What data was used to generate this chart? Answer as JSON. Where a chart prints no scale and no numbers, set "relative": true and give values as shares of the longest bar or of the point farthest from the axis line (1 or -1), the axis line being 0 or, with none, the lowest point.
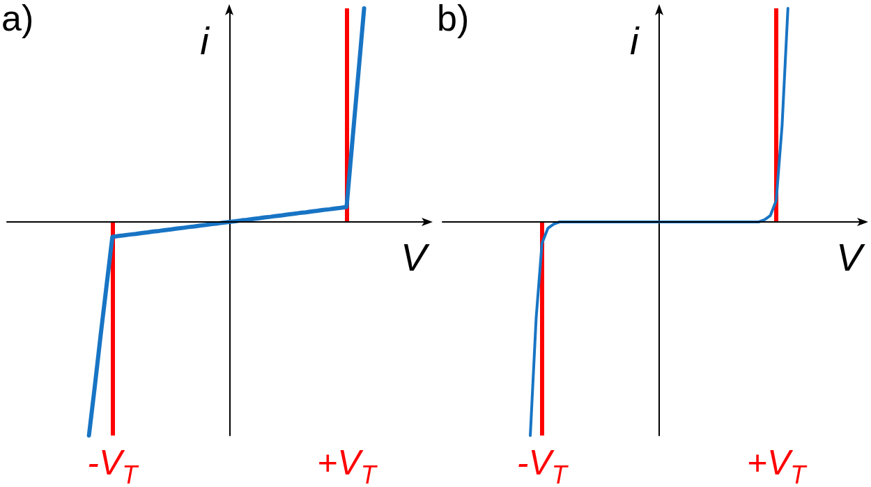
{
  "chart_data": [
    {
      "type": "line",
      "title": "a)",
      "xlabel": "V",
      "ylabel": "i",
      "relative": true,
      "tick_labels": "x",
      "categories": [
        null,
        null,
        null,
        null,
        null,
        null,
        null,
        null,
        null,
        null,
        null,
        null,
        null,
        null,
        null,
        null,
        null,
        null,
        "-V$_{T}$",
        null,
        null,
        null,
        null,
        null,
        null,
        null,
        null,
        null,
        null,
        null,
        null,
        null,
        null,
        null,
        null,
        null,
        null,
        null,
        null,
        null,
        null,
        null,
        null,
        null,
        null,
        null,
        null,
        null,
        null,
        null,
        null,
        null,
        null,
        null,
        null,
        null,
        null,
        null,
        "+V$_{T}$",
        null,
        null,
        null,
        null,
        null,
        null,
        null,
        null,
        null,
        null,
        null,
        null,
        null,
        null
      ],
      "series": [
        {
          "color": "#1874c4",
          "values": [
            null,
            null,
            null,
            null,
            null,
            null,
            null,
            null,
            null,
            null,
            null,
            null,
            null,
            null,
            -1,
            -0.77,
            -0.53,
            -0.3,
            -0.07,
            -0.066,
            -0.063,
            -0.059,
            -0.056,
            -0.052,
            -0.049,
            -0.045,
            -0.042,
            -0.038,
            -0.035,
            -0.031,
            -0.028,
            -0.024,
            -0.021,
            -0.017,
            -0.014,
            -0.01,
            -0.007,
            -0.003,
            0,
            0.003,
            0.007,
            0.01,
            0.014,
            0.017,
            0.021,
            0.024,
            0.028,
            0.031,
            0.035,
            0.038,
            0.042,
            0.045,
            0.049,
            0.052,
            0.056,
            0.059,
            0.063,
            0.066,
            0.07,
            0.38,
            0.69,
            1,
            null,
            null,
            null,
            null,
            null,
            null,
            null,
            null,
            null,
            null,
            null
          ]
        }
      ],
      "ref_lines": [
        {
          "axis": "x",
          "value": "-V$_{T}$",
          "color": "#ff0000"
        },
        {
          "axis": "x",
          "value": "+V$_{T}$",
          "color": "#ff0000"
        }
      ]
    },
    {
      "type": "line",
      "title": "b)",
      "xlabel": "V",
      "ylabel": "i",
      "relative": true,
      "tick_labels": "x",
      "categories": [
        null,
        null,
        null,
        null,
        null,
        null,
        null,
        null,
        null,
        null,
        null,
        null,
        null,
        null,
        null,
        null,
        null,
        "-V$_{T}$",
        null,
        null,
        null,
        null,
        null,
        null,
        null,
        null,
        null,
        null,
        null,
        null,
        null,
        null,
        null,
        null,
        null,
        null,
        null,
        null,
        null,
        null,
        null,
        null,
        null,
        null,
        null,
        null,
        null,
        null,
        null,
        null,
        null,
        null,
        null,
        null,
        null,
        null,
        null,
        "+V$_{T}$",
        null,
        null,
        null,
        null,
        null,
        null,
        null,
        null,
        null,
        null,
        null,
        null,
        null,
        null,
        null
      ],
      "series": [
        {
          "color": "#1874c4",
          "values": [
            null,
            null,
            null,
            null,
            null,
            null,
            null,
            null,
            null,
            null,
            null,
            null,
            null,
            null,
            null,
            -1,
            -0.45,
            -0.1,
            -0.03,
            -0.01,
            0,
            0,
            0,
            0,
            0,
            0,
            0,
            0,
            0,
            0,
            0,
            0,
            0,
            0,
            0,
            0,
            0,
            0,
            0,
            0,
            0,
            0,
            0,
            0,
            0,
            0,
            0,
            0,
            0,
            0,
            0,
            0,
            0,
            0,
            0,
            0.01,
            0.03,
            0.1,
            0.45,
            1,
            null,
            null,
            null,
            null,
            null,
            null,
            null,
            null,
            null,
            null,
            null,
            null,
            null
          ]
        }
      ],
      "ref_lines": [
        {
          "axis": "x",
          "value": "-V$_{T}$",
          "color": "#ff0000"
        },
        {
          "axis": "x",
          "value": "+V$_{T}$",
          "color": "#ff0000"
        }
      ]
    }
  ]
}
